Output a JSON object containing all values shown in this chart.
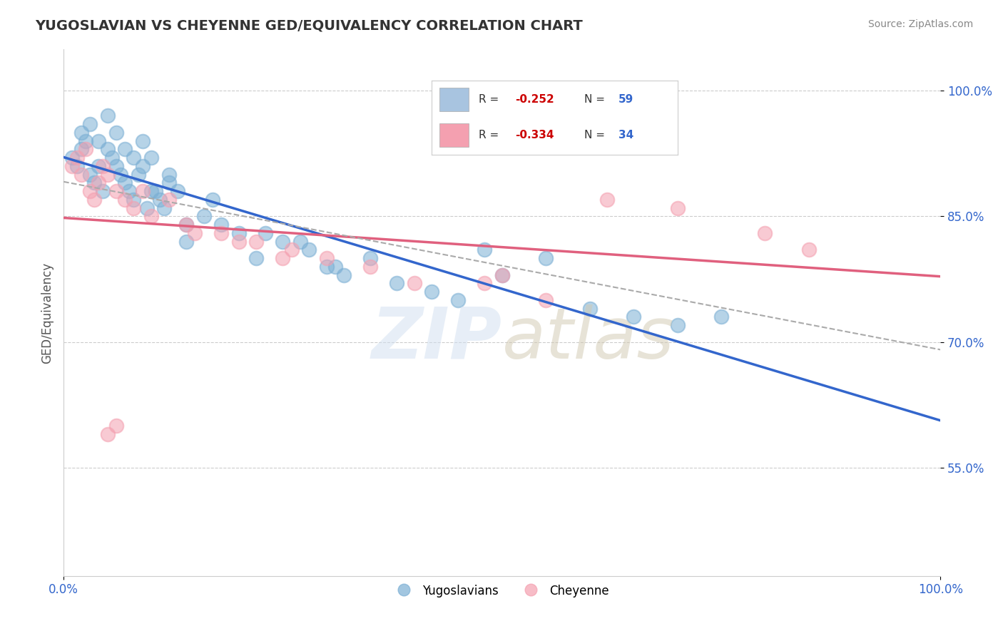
{
  "title": "YUGOSLAVIAN VS CHEYENNE GED/EQUIVALENCY CORRELATION CHART",
  "source": "Source: ZipAtlas.com",
  "ylabel": "GED/Equivalency",
  "ytick_labels": [
    "55.0%",
    "70.0%",
    "85.0%",
    "100.0%"
  ],
  "ytick_values": [
    0.55,
    0.7,
    0.85,
    1.0
  ],
  "xlim": [
    0.0,
    1.0
  ],
  "ylim": [
    0.42,
    1.05
  ],
  "legend1_color": "#a8c4e0",
  "legend2_color": "#f4a0b0",
  "blue_color": "#7bafd4",
  "pink_color": "#f4a0b0",
  "trend_blue": "#3366cc",
  "trend_pink": "#e0607e",
  "blue_scatter_x": [
    0.01,
    0.015,
    0.02,
    0.025,
    0.03,
    0.035,
    0.04,
    0.045,
    0.05,
    0.055,
    0.06,
    0.065,
    0.07,
    0.075,
    0.08,
    0.085,
    0.09,
    0.095,
    0.1,
    0.105,
    0.11,
    0.115,
    0.12,
    0.13,
    0.14,
    0.16,
    0.18,
    0.2,
    0.22,
    0.25,
    0.28,
    0.3,
    0.32,
    0.35,
    0.38,
    0.42,
    0.45,
    0.5,
    0.55,
    0.6,
    0.65,
    0.7,
    0.02,
    0.03,
    0.04,
    0.05,
    0.06,
    0.07,
    0.08,
    0.09,
    0.1,
    0.12,
    0.14,
    0.17,
    0.23,
    0.27,
    0.31,
    0.48,
    0.75
  ],
  "blue_scatter_y": [
    0.92,
    0.91,
    0.93,
    0.94,
    0.9,
    0.89,
    0.91,
    0.88,
    0.93,
    0.92,
    0.91,
    0.9,
    0.89,
    0.88,
    0.87,
    0.9,
    0.91,
    0.86,
    0.92,
    0.88,
    0.87,
    0.86,
    0.89,
    0.88,
    0.82,
    0.85,
    0.84,
    0.83,
    0.8,
    0.82,
    0.81,
    0.79,
    0.78,
    0.8,
    0.77,
    0.76,
    0.75,
    0.78,
    0.8,
    0.74,
    0.73,
    0.72,
    0.95,
    0.96,
    0.94,
    0.97,
    0.95,
    0.93,
    0.92,
    0.94,
    0.88,
    0.9,
    0.84,
    0.87,
    0.83,
    0.82,
    0.79,
    0.81,
    0.73
  ],
  "pink_scatter_x": [
    0.01,
    0.015,
    0.02,
    0.025,
    0.03,
    0.035,
    0.04,
    0.045,
    0.05,
    0.06,
    0.07,
    0.08,
    0.09,
    0.1,
    0.12,
    0.14,
    0.18,
    0.22,
    0.26,
    0.3,
    0.35,
    0.4,
    0.55,
    0.62,
    0.7,
    0.8,
    0.85,
    0.15,
    0.2,
    0.25,
    0.05,
    0.06,
    0.5,
    0.48
  ],
  "pink_scatter_y": [
    0.91,
    0.92,
    0.9,
    0.93,
    0.88,
    0.87,
    0.89,
    0.91,
    0.9,
    0.88,
    0.87,
    0.86,
    0.88,
    0.85,
    0.87,
    0.84,
    0.83,
    0.82,
    0.81,
    0.8,
    0.79,
    0.77,
    0.75,
    0.87,
    0.86,
    0.83,
    0.81,
    0.83,
    0.82,
    0.8,
    0.59,
    0.6,
    0.78,
    0.77
  ]
}
